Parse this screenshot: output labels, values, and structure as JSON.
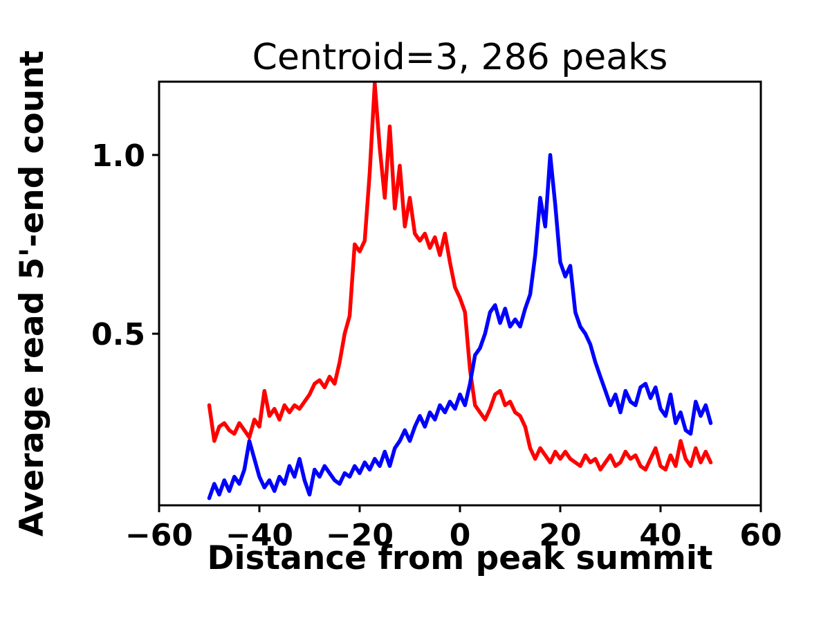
{
  "chart_data": {
    "type": "line",
    "title": "Centroid=3, 286 peaks",
    "xlabel": "Distance from peak summit",
    "ylabel": "Average read 5'-end count",
    "xlim": [
      -60,
      60
    ],
    "ylim": [
      0.02,
      1.205
    ],
    "grid": false,
    "legend_position": "none",
    "xticks": {
      "values": [
        -60,
        -40,
        -20,
        0,
        20,
        40,
        60
      ],
      "labels": [
        "−60",
        "−40",
        "−20",
        "0",
        "20",
        "40",
        "60"
      ]
    },
    "yticks": {
      "values": [
        0.5,
        1.0
      ],
      "labels": [
        "0.5",
        "1.0"
      ]
    },
    "x": [
      -50,
      -49,
      -48,
      -47,
      -46,
      -45,
      -44,
      -43,
      -42,
      -41,
      -40,
      -39,
      -38,
      -37,
      -36,
      -35,
      -34,
      -33,
      -32,
      -31,
      -30,
      -29,
      -28,
      -27,
      -26,
      -25,
      -24,
      -23,
      -22,
      -21,
      -20,
      -19,
      -18,
      -17,
      -16,
      -15,
      -14,
      -13,
      -12,
      -11,
      -10,
      -9,
      -8,
      -7,
      -6,
      -5,
      -4,
      -3,
      -2,
      -1,
      0,
      1,
      2,
      3,
      4,
      5,
      6,
      7,
      8,
      9,
      10,
      11,
      12,
      13,
      14,
      15,
      16,
      17,
      18,
      19,
      20,
      21,
      22,
      23,
      24,
      25,
      26,
      27,
      28,
      29,
      30,
      31,
      32,
      33,
      34,
      35,
      36,
      37,
      38,
      39,
      40,
      41,
      42,
      43,
      44,
      45,
      46,
      47,
      48,
      49,
      50
    ],
    "series": [
      {
        "name": "red",
        "color": "#ff0000",
        "values": [
          0.3,
          0.2,
          0.24,
          0.25,
          0.23,
          0.22,
          0.25,
          0.23,
          0.21,
          0.26,
          0.24,
          0.34,
          0.27,
          0.29,
          0.26,
          0.3,
          0.28,
          0.3,
          0.29,
          0.31,
          0.33,
          0.36,
          0.37,
          0.35,
          0.38,
          0.36,
          0.42,
          0.5,
          0.55,
          0.75,
          0.73,
          0.76,
          0.95,
          1.2,
          1.02,
          0.88,
          1.08,
          0.85,
          0.97,
          0.8,
          0.88,
          0.78,
          0.76,
          0.78,
          0.74,
          0.77,
          0.72,
          0.78,
          0.7,
          0.63,
          0.6,
          0.56,
          0.4,
          0.3,
          0.28,
          0.26,
          0.29,
          0.33,
          0.34,
          0.3,
          0.31,
          0.28,
          0.27,
          0.24,
          0.18,
          0.15,
          0.18,
          0.16,
          0.14,
          0.17,
          0.15,
          0.17,
          0.15,
          0.14,
          0.13,
          0.16,
          0.14,
          0.15,
          0.12,
          0.14,
          0.16,
          0.13,
          0.14,
          0.17,
          0.15,
          0.16,
          0.13,
          0.12,
          0.15,
          0.18,
          0.13,
          0.12,
          0.16,
          0.13,
          0.2,
          0.15,
          0.13,
          0.18,
          0.14,
          0.17,
          0.14
        ]
      },
      {
        "name": "blue",
        "color": "#0000ff",
        "values": [
          0.04,
          0.08,
          0.05,
          0.09,
          0.06,
          0.1,
          0.08,
          0.12,
          0.2,
          0.15,
          0.1,
          0.07,
          0.09,
          0.06,
          0.1,
          0.08,
          0.13,
          0.1,
          0.15,
          0.09,
          0.05,
          0.12,
          0.1,
          0.13,
          0.11,
          0.09,
          0.08,
          0.11,
          0.1,
          0.13,
          0.11,
          0.14,
          0.12,
          0.15,
          0.13,
          0.17,
          0.13,
          0.18,
          0.2,
          0.23,
          0.2,
          0.24,
          0.27,
          0.24,
          0.28,
          0.26,
          0.3,
          0.28,
          0.31,
          0.29,
          0.33,
          0.3,
          0.36,
          0.44,
          0.46,
          0.5,
          0.56,
          0.58,
          0.53,
          0.57,
          0.52,
          0.54,
          0.52,
          0.57,
          0.61,
          0.72,
          0.88,
          0.8,
          1.0,
          0.86,
          0.7,
          0.66,
          0.69,
          0.56,
          0.52,
          0.5,
          0.47,
          0.42,
          0.38,
          0.34,
          0.3,
          0.33,
          0.28,
          0.34,
          0.31,
          0.3,
          0.35,
          0.36,
          0.32,
          0.35,
          0.29,
          0.27,
          0.33,
          0.25,
          0.28,
          0.23,
          0.22,
          0.31,
          0.27,
          0.3,
          0.25
        ]
      }
    ],
    "style": {
      "line_width": 5.5,
      "axes_color": "#000000",
      "axes_line_width": 3,
      "tick_length": 10,
      "background": "#ffffff"
    }
  }
}
